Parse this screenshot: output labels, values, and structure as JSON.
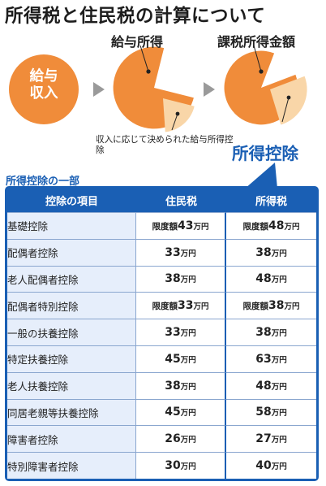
{
  "title": "所得税と住民税の計算について",
  "diagram": {
    "income": {
      "line1": "給与",
      "line2": "収入"
    },
    "salary_income_label": "給与所得",
    "taxable_income_label": "課税所得金額",
    "deduction_note": "収入に応じて決められた給与所得控除",
    "income_deduction_label": "所得控除",
    "colors": {
      "orange": "#f08c3a",
      "light_orange": "#f9d6a8",
      "arrow_gray": "#9a9a9a",
      "blue": "#1a5fb4"
    }
  },
  "table": {
    "section_label": "所得控除の一部",
    "headers": {
      "item": "控除の項目",
      "jumin": "住民税",
      "shotoku": "所得税"
    },
    "rows": [
      {
        "item": "基礎控除",
        "jumin": {
          "prefix": "限度額",
          "num": "43",
          "unit": "万円"
        },
        "shotoku": {
          "prefix": "限度額",
          "num": "48",
          "unit": "万円"
        }
      },
      {
        "item": "配偶者控除",
        "jumin": {
          "prefix": "",
          "num": "33",
          "unit": "万円"
        },
        "shotoku": {
          "prefix": "",
          "num": "38",
          "unit": "万円"
        }
      },
      {
        "item": "老人配偶者控除",
        "jumin": {
          "prefix": "",
          "num": "38",
          "unit": "万円"
        },
        "shotoku": {
          "prefix": "",
          "num": "48",
          "unit": "万円"
        }
      },
      {
        "item": "配偶者特別控除",
        "jumin": {
          "prefix": "限度額",
          "num": "33",
          "unit": "万円"
        },
        "shotoku": {
          "prefix": "限度額",
          "num": "38",
          "unit": "万円"
        }
      },
      {
        "item": "一般の扶養控除",
        "jumin": {
          "prefix": "",
          "num": "33",
          "unit": "万円"
        },
        "shotoku": {
          "prefix": "",
          "num": "38",
          "unit": "万円"
        }
      },
      {
        "item": "特定扶養控除",
        "jumin": {
          "prefix": "",
          "num": "45",
          "unit": "万円"
        },
        "shotoku": {
          "prefix": "",
          "num": "63",
          "unit": "万円"
        }
      },
      {
        "item": "老人扶養控除",
        "jumin": {
          "prefix": "",
          "num": "38",
          "unit": "万円"
        },
        "shotoku": {
          "prefix": "",
          "num": "48",
          "unit": "万円"
        }
      },
      {
        "item": "同居老親等扶養控除",
        "jumin": {
          "prefix": "",
          "num": "45",
          "unit": "万円"
        },
        "shotoku": {
          "prefix": "",
          "num": "58",
          "unit": "万円"
        }
      },
      {
        "item": "障害者控除",
        "jumin": {
          "prefix": "",
          "num": "26",
          "unit": "万円"
        },
        "shotoku": {
          "prefix": "",
          "num": "27",
          "unit": "万円"
        }
      },
      {
        "item": "特別障害者控除",
        "jumin": {
          "prefix": "",
          "num": "30",
          "unit": "万円"
        },
        "shotoku": {
          "prefix": "",
          "num": "40",
          "unit": "万円"
        }
      }
    ]
  }
}
